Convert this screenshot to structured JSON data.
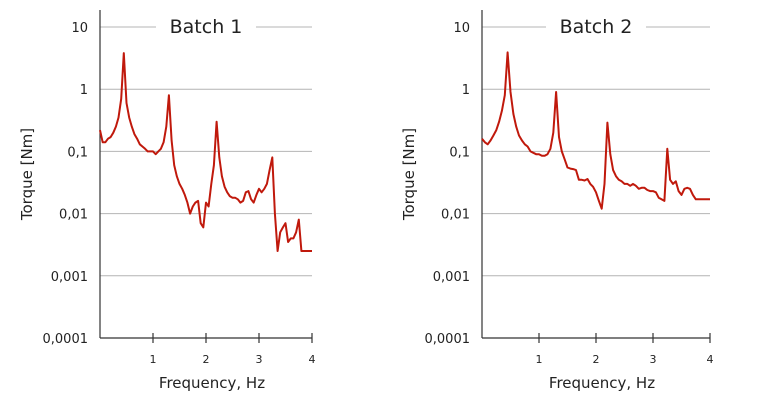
{
  "chart_data": [
    {
      "type": "line",
      "title": "Batch 1",
      "xlabel": "Frequency, Hz",
      "ylabel": "Torque [Nm]",
      "yscale": "log",
      "ylim": [
        0.0001,
        20
      ],
      "xlim": [
        0,
        4
      ],
      "xticks": [
        "1",
        "2",
        "3",
        "4"
      ],
      "yticks": [
        "0,0001",
        "0,001",
        "0,01",
        "0,1",
        "1",
        "10"
      ],
      "grid": "horizontal",
      "line_color": "#c0190c",
      "series": [
        {
          "x": [
            0,
            0.05,
            0.1,
            0.15,
            0.2,
            0.25,
            0.3,
            0.35,
            0.4,
            0.45,
            0.5,
            0.55,
            0.6,
            0.65,
            0.7,
            0.75,
            0.8,
            0.85,
            0.9,
            0.95,
            1.0,
            1.05,
            1.1,
            1.15,
            1.2,
            1.25,
            1.3,
            1.35,
            1.4,
            1.45,
            1.5,
            1.55,
            1.6,
            1.65,
            1.7,
            1.75,
            1.8,
            1.85,
            1.9,
            1.95,
            2.0,
            2.05,
            2.1,
            2.15,
            2.2,
            2.25,
            2.3,
            2.35,
            2.4,
            2.45,
            2.5,
            2.55,
            2.6,
            2.65,
            2.7,
            2.75,
            2.8,
            2.85,
            2.9,
            2.95,
            3.0,
            3.05,
            3.1,
            3.15,
            3.2,
            3.25,
            3.3,
            3.35,
            3.4,
            3.45,
            3.5,
            3.55,
            3.6,
            3.65,
            3.7,
            3.75,
            3.8,
            3.85,
            3.9,
            3.95,
            4.0
          ],
          "y": [
            0.22,
            0.14,
            0.14,
            0.16,
            0.17,
            0.2,
            0.25,
            0.35,
            0.7,
            3.8,
            0.6,
            0.35,
            0.25,
            0.19,
            0.16,
            0.13,
            0.12,
            0.11,
            0.1,
            0.1,
            0.1,
            0.09,
            0.1,
            0.11,
            0.14,
            0.25,
            0.8,
            0.15,
            0.06,
            0.04,
            0.03,
            0.025,
            0.02,
            0.015,
            0.01,
            0.013,
            0.015,
            0.016,
            0.007,
            0.006,
            0.015,
            0.013,
            0.03,
            0.06,
            0.3,
            0.08,
            0.04,
            0.027,
            0.022,
            0.019,
            0.018,
            0.018,
            0.017,
            0.015,
            0.016,
            0.022,
            0.023,
            0.017,
            0.015,
            0.02,
            0.025,
            0.022,
            0.025,
            0.03,
            0.05,
            0.08,
            0.01,
            0.0025,
            0.005,
            0.006,
            0.007,
            0.0035,
            0.004,
            0.004,
            0.005,
            0.008,
            0.0025,
            0.0025,
            0.0025,
            0.0025,
            0.0025
          ]
        }
      ]
    },
    {
      "type": "line",
      "title": "Batch 2",
      "xlabel": "Frequency, Hz",
      "ylabel": "Torque [Nm]",
      "yscale": "log",
      "ylim": [
        0.0001,
        20
      ],
      "xlim": [
        0,
        4
      ],
      "xticks": [
        "1",
        "2",
        "3",
        "4"
      ],
      "yticks": [
        "0,0001",
        "0,001",
        "0,01",
        "0,1",
        "1",
        "10"
      ],
      "grid": "horizontal",
      "line_color": "#c0190c",
      "series": [
        {
          "x": [
            0,
            0.05,
            0.1,
            0.15,
            0.2,
            0.25,
            0.3,
            0.35,
            0.4,
            0.45,
            0.5,
            0.55,
            0.6,
            0.65,
            0.7,
            0.75,
            0.8,
            0.85,
            0.9,
            0.95,
            1.0,
            1.05,
            1.1,
            1.15,
            1.2,
            1.25,
            1.3,
            1.35,
            1.4,
            1.45,
            1.5,
            1.55,
            1.6,
            1.65,
            1.7,
            1.75,
            1.8,
            1.85,
            1.9,
            1.95,
            2.0,
            2.05,
            2.1,
            2.15,
            2.2,
            2.25,
            2.3,
            2.35,
            2.4,
            2.45,
            2.5,
            2.55,
            2.6,
            2.65,
            2.7,
            2.75,
            2.8,
            2.85,
            2.9,
            2.95,
            3.0,
            3.05,
            3.1,
            3.15,
            3.2,
            3.25,
            3.3,
            3.35,
            3.4,
            3.45,
            3.5,
            3.55,
            3.6,
            3.65,
            3.7,
            3.75,
            3.8,
            3.85,
            3.9,
            3.95,
            4.0
          ],
          "y": [
            0.16,
            0.14,
            0.13,
            0.15,
            0.18,
            0.22,
            0.3,
            0.45,
            0.8,
            3.9,
            0.9,
            0.4,
            0.25,
            0.18,
            0.15,
            0.13,
            0.12,
            0.1,
            0.095,
            0.09,
            0.09,
            0.085,
            0.085,
            0.09,
            0.11,
            0.2,
            0.9,
            0.17,
            0.1,
            0.075,
            0.055,
            0.053,
            0.052,
            0.05,
            0.035,
            0.035,
            0.034,
            0.036,
            0.03,
            0.027,
            0.022,
            0.016,
            0.012,
            0.03,
            0.29,
            0.09,
            0.05,
            0.04,
            0.035,
            0.033,
            0.03,
            0.03,
            0.028,
            0.03,
            0.028,
            0.025,
            0.026,
            0.026,
            0.024,
            0.023,
            0.023,
            0.022,
            0.018,
            0.017,
            0.016,
            0.11,
            0.035,
            0.03,
            0.033,
            0.023,
            0.02,
            0.025,
            0.026,
            0.025,
            0.02,
            0.017,
            0.017,
            0.017,
            0.017,
            0.017,
            0.017
          ]
        }
      ]
    }
  ]
}
